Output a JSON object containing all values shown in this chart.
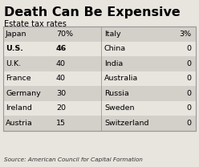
{
  "title": "Death Can Be Expensive",
  "subtitle": "Estate tax rates",
  "source": "Source: American Council for Capital Formation",
  "left_col": [
    [
      "Japan",
      "70%"
    ],
    [
      "U.S.",
      "46"
    ],
    [
      "U.K.",
      "40"
    ],
    [
      "France",
      "40"
    ],
    [
      "Germany",
      "30"
    ],
    [
      "Ireland",
      "20"
    ],
    [
      "Austria",
      "15"
    ]
  ],
  "right_col": [
    [
      "Italy",
      "3%"
    ],
    [
      "China",
      "0"
    ],
    [
      "India",
      "0"
    ],
    [
      "Australia",
      "0"
    ],
    [
      "Russia",
      "0"
    ],
    [
      "Sweden",
      "0"
    ],
    [
      "Switzerland",
      "0"
    ]
  ],
  "bold_row": 1,
  "shaded_rows": [
    0,
    2,
    4,
    6
  ],
  "shade_color": "#d3cfc9",
  "bg_color": "#e8e4de",
  "border_color": "#999999",
  "title_fontsize": 11.5,
  "subtitle_fontsize": 7.0,
  "table_fontsize": 6.8,
  "source_fontsize": 5.2
}
